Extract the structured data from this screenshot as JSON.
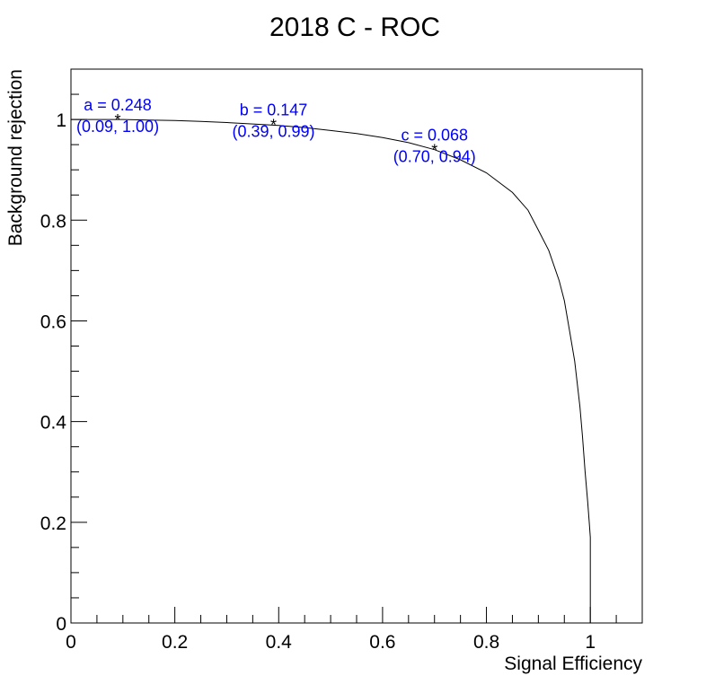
{
  "chart_data": {
    "type": "line",
    "title": "2018 C - ROC",
    "xlabel": "Signal Efficiency",
    "ylabel": "Background rejection",
    "xlim": [
      0,
      1.1
    ],
    "ylim": [
      0,
      1.1
    ],
    "xticks": [
      0,
      0.2,
      0.4,
      0.6,
      0.8,
      1
    ],
    "xtick_labels": [
      "0",
      "0.2",
      "0.4",
      "0.6",
      "0.8",
      "1"
    ],
    "yticks": [
      0,
      0.2,
      0.4,
      0.6,
      0.8,
      1
    ],
    "ytick_labels": [
      "0",
      "0.2",
      "0.4",
      "0.6",
      "0.8",
      "1"
    ],
    "grid": false,
    "series": [
      {
        "x": [
          0.0,
          0.05,
          0.1,
          0.15,
          0.2,
          0.25,
          0.3,
          0.35,
          0.4,
          0.45,
          0.5,
          0.55,
          0.6,
          0.65,
          0.7,
          0.75,
          0.8,
          0.85,
          0.88,
          0.9,
          0.92,
          0.94,
          0.95,
          0.96,
          0.97,
          0.98,
          0.985,
          0.99,
          0.995,
          0.998,
          1.0,
          1.0
        ],
        "y": [
          1.0,
          1.0,
          1.0,
          0.999,
          0.998,
          0.996,
          0.994,
          0.991,
          0.988,
          0.984,
          0.978,
          0.972,
          0.964,
          0.954,
          0.94,
          0.92,
          0.894,
          0.855,
          0.82,
          0.78,
          0.74,
          0.68,
          0.64,
          0.58,
          0.52,
          0.43,
          0.37,
          0.3,
          0.24,
          0.2,
          0.17,
          0.0
        ]
      }
    ],
    "annotations": [
      {
        "label": "a = 0.248",
        "coords": "(0.09, 1.00)",
        "x": 0.09,
        "y": 1.0
      },
      {
        "label": "b = 0.147",
        "coords": "(0.39, 0.99)",
        "x": 0.39,
        "y": 0.99
      },
      {
        "label": "c = 0.068",
        "coords": "(0.70, 0.94)",
        "x": 0.7,
        "y": 0.94
      }
    ],
    "colors": {
      "curve": "#000000",
      "annotation": "#0000ff",
      "axes": "#000000"
    }
  }
}
